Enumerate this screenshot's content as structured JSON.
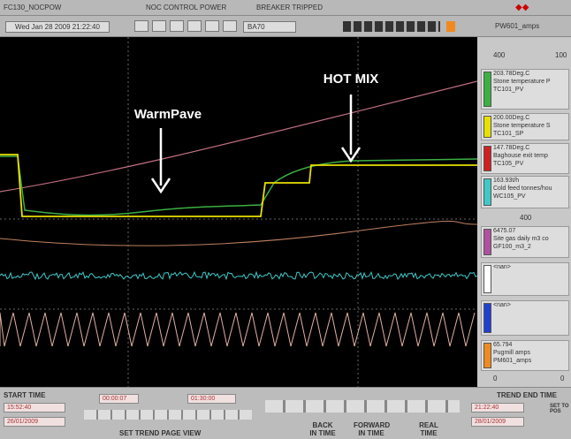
{
  "top_bar": {
    "tag": "FC130_NOCPOW",
    "description": "NOC CONTROL POWER",
    "status": "BREAKER TRIPPED"
  },
  "toolbar": {
    "datetime": "Wed Jan 28 2009 21:22:40",
    "field": "BA70",
    "pen": "PW601_amps"
  },
  "annotations": {
    "warm": "WarmPave",
    "hot": "HOT MIX"
  },
  "legend": {
    "scale_left": "400",
    "scale_right": "100",
    "pens": [
      {
        "value": "203.78Deg.C",
        "desc": "Stone temperature P",
        "tag": "TC101_PV",
        "color": "#3cb043"
      },
      {
        "value": "200.00Deg.C",
        "desc": "Stone temperature S",
        "tag": "TC101_SP",
        "color": "#e8e000"
      },
      {
        "value": "147.78Deg.C",
        "desc": "Baghouse exit temp",
        "tag": "TC105_PV",
        "color": "#d02020"
      },
      {
        "value": "163.93t/h",
        "desc": "Cold feed tonnes/hou",
        "tag": "WC105_PV",
        "color": "#40c8c8"
      },
      {
        "value": "6475.07",
        "desc": "Site gas daily m3 co",
        "tag": "GF100_m3_2",
        "color": "#b050a0"
      },
      {
        "value": "<nan>",
        "color": "#ffffff"
      },
      {
        "value": "<nan>",
        "color": "#2040d0"
      },
      {
        "value": "65.794",
        "desc": "Pugmill amps",
        "tag": "PM601_amps",
        "color": "#f08a20"
      }
    ],
    "mid_scale": "400",
    "bottom_left": "0",
    "bottom_right": "0"
  },
  "bottom": {
    "start_label": "START TIME",
    "start_time": "15:52:40",
    "start_date": "26/01/2009",
    "span_a": "00:00:07",
    "span_b": "01:30:00",
    "page_view": "SET TREND PAGE VIEW",
    "back": "BACK IN TIME",
    "forward": "FORWARD IN TIME",
    "real": "REAL TIME",
    "end_label": "TREND END TIME",
    "end_time": "21:22:40",
    "end_date": "28/01/2009",
    "set_pos": "SET TO POS"
  }
}
